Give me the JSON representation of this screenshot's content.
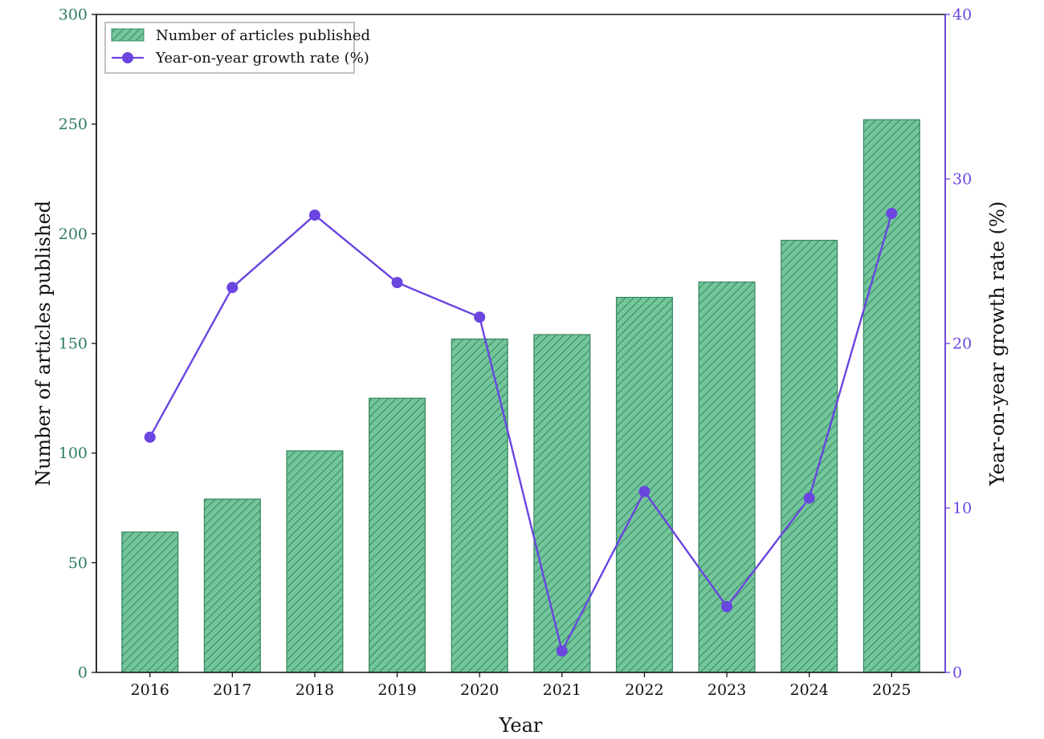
{
  "chart_data": {
    "type": "bar",
    "categories": [
      "2016",
      "2017",
      "2018",
      "2019",
      "2020",
      "2021",
      "2022",
      "2023",
      "2024",
      "2025"
    ],
    "series": [
      {
        "name": "Number of articles published",
        "type": "bar",
        "axis": "left",
        "values": [
          64,
          79,
          101,
          125,
          152,
          154,
          171,
          178,
          197,
          252
        ]
      },
      {
        "name": "Year-on-year growth rate (%)",
        "type": "line",
        "axis": "right",
        "values": [
          14.3,
          23.4,
          27.8,
          23.7,
          21.6,
          1.3,
          11.0,
          4.0,
          10.6,
          27.9
        ]
      }
    ],
    "xlabel": "Year",
    "ylabel": "Number of articles published",
    "y2label": "Year-on-year growth rate (%)",
    "ylim": [
      0,
      300
    ],
    "y2lim": [
      0,
      40
    ],
    "yticks": [
      0,
      50,
      100,
      150,
      200,
      250,
      300
    ],
    "y2ticks": [
      0,
      10,
      20,
      30,
      40
    ],
    "grid": false,
    "legend_position": "top-left",
    "colors": {
      "bar_fill": "#73c69a",
      "bar_edge": "#3a8a63",
      "bar_hatch": "#3a8a63",
      "line": "#6a45e0",
      "left_axis": "#2e7d5b",
      "right_axis": "#6a45e0"
    }
  }
}
